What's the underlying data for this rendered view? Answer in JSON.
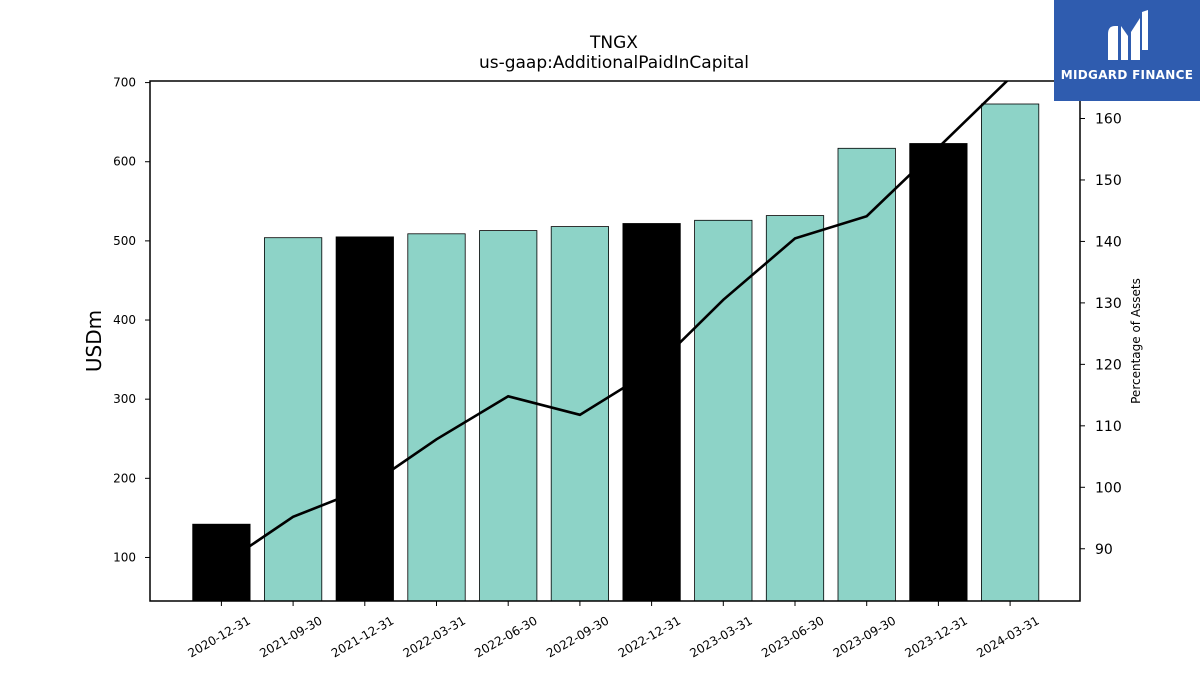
{
  "chart_data": {
    "type": "bar",
    "title": "TNGX",
    "subtitle": "us-gaap:AdditionalPaidInCapital",
    "ylabel": "USDm",
    "y2label": "Percentage of Assets",
    "categories": [
      "2020-12-31",
      "2021-09-30",
      "2021-12-31",
      "2022-03-31",
      "2022-06-30",
      "2022-09-30",
      "2022-12-31",
      "2023-03-31",
      "2023-06-30",
      "2023-09-30",
      "2023-12-31",
      "2024-03-31"
    ],
    "series": [
      {
        "values": [
          142,
          504,
          505,
          509,
          513,
          518,
          522,
          526,
          532,
          617,
          623,
          673
        ],
        "colors": [
          "#000000",
          "#8dd3c7",
          "#000000",
          "#8dd3c7",
          "#8dd3c7",
          "#8dd3c7",
          "#000000",
          "#8dd3c7",
          "#8dd3c7",
          "#8dd3c7",
          "#000000",
          "#8dd3c7"
        ]
      },
      {
        "type": "line",
        "axis": "right",
        "color": "#000000",
        "values": [
          87.3,
          95.2,
          99.8,
          107.8,
          114.8,
          111.8,
          119.0,
          130.5,
          140.5,
          144.1,
          155.3,
          166.6
        ]
      }
    ],
    "ylim": [
      45,
      702
    ],
    "y2lim": [
      81.5,
      166.1
    ],
    "yticks": [
      100,
      200,
      300,
      400,
      500,
      600,
      700
    ],
    "y2ticks": [
      90,
      100,
      110,
      120,
      130,
      140,
      150,
      160
    ],
    "grid": false
  },
  "logo": {
    "text": "MIDGARD FINANCE",
    "background": "#2f5caf"
  }
}
